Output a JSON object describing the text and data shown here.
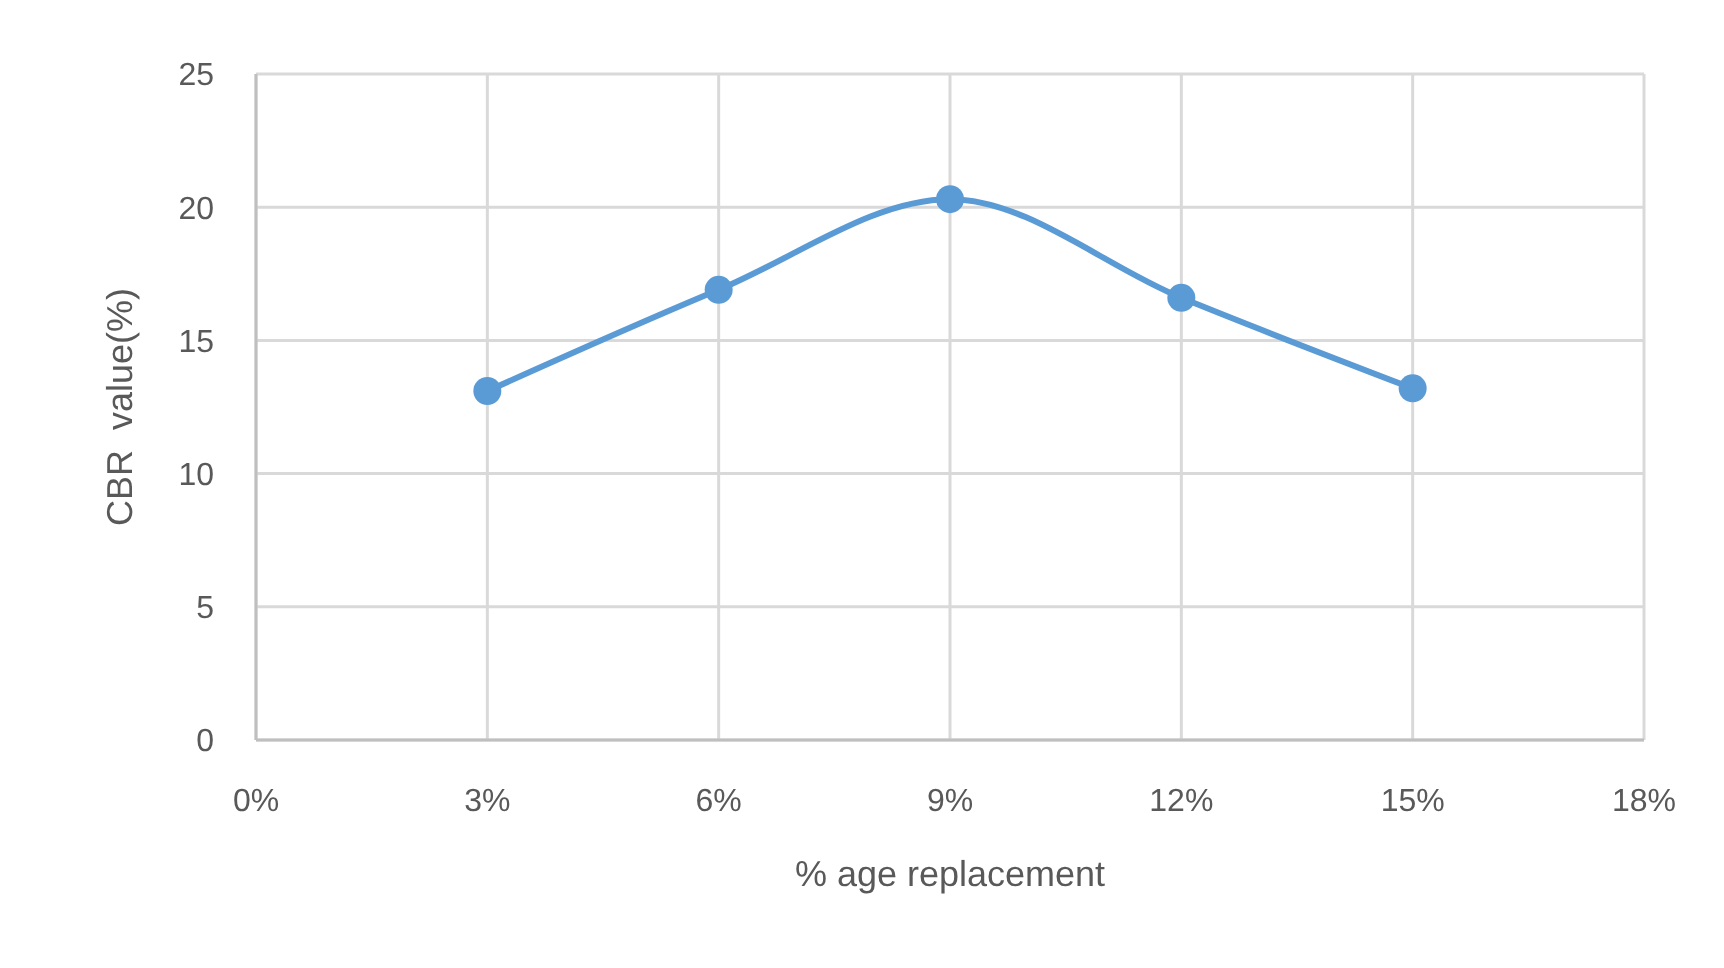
{
  "chart_data": {
    "type": "line",
    "xlabel": "% age replacement",
    "ylabel": "CBR  value(%)",
    "x": [
      3,
      6,
      9,
      12,
      15
    ],
    "series": [
      {
        "color": "#5b9bd5",
        "values": [
          13.1,
          16.9,
          20.3,
          16.6,
          13.2
        ]
      }
    ],
    "xlim": [
      0,
      18
    ],
    "xticks": [
      {
        "value": 0,
        "label": "0%"
      },
      {
        "value": 3,
        "label": "3%"
      },
      {
        "value": 6,
        "label": "6%"
      },
      {
        "value": 9,
        "label": "9%"
      },
      {
        "value": 12,
        "label": "12%"
      },
      {
        "value": 15,
        "label": "15%"
      },
      {
        "value": 18,
        "label": "18%"
      }
    ],
    "ylim": [
      0,
      25
    ],
    "yticks": [
      0,
      5,
      10,
      15,
      20,
      25
    ],
    "grid": true,
    "marker": "circle",
    "line_style": "solid"
  }
}
